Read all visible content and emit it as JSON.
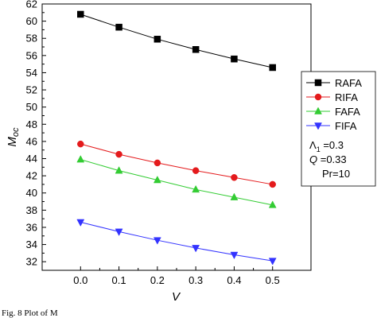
{
  "chart_data": {
    "type": "line",
    "x": [
      0.0,
      0.1,
      0.2,
      0.3,
      0.4,
      0.5
    ],
    "xlim": [
      -0.1,
      0.6
    ],
    "ylim": [
      31,
      62
    ],
    "xticks": [
      "0.0",
      "0.1",
      "0.2",
      "0.3",
      "0.4",
      "0.5"
    ],
    "yticks": [
      "32",
      "34",
      "36",
      "38",
      "40",
      "42",
      "44",
      "46",
      "48",
      "50",
      "52",
      "54",
      "56",
      "58",
      "60",
      "62"
    ],
    "xlabel": "V",
    "ylabel_main": "M",
    "ylabel_sub": "oc",
    "legend_position": "right",
    "series": [
      {
        "name": "RAFA",
        "color": "#000000",
        "marker": "square",
        "values": [
          60.8,
          59.3,
          57.9,
          56.7,
          55.6,
          54.6
        ]
      },
      {
        "name": "RIFA",
        "color": "#e41a1c",
        "marker": "circle",
        "values": [
          45.7,
          44.5,
          43.5,
          42.6,
          41.8,
          41.0
        ]
      },
      {
        "name": "FAFA",
        "color": "#33cc33",
        "marker": "triangle-up",
        "values": [
          43.9,
          42.6,
          41.5,
          40.4,
          39.5,
          38.6
        ]
      },
      {
        "name": "FIFA",
        "color": "#3333ff",
        "marker": "triangle-down",
        "values": [
          36.6,
          35.5,
          34.5,
          33.6,
          32.8,
          32.1
        ]
      }
    ],
    "annotations": [
      {
        "label": "Λ",
        "sub": "1",
        "value": " =0.3"
      },
      {
        "label": "Q",
        "sub": "",
        "value": " =0.33"
      },
      {
        "label": "Pr",
        "sub": "",
        "value": "=10"
      }
    ]
  },
  "caption": "Fig. 8  Plot of M"
}
